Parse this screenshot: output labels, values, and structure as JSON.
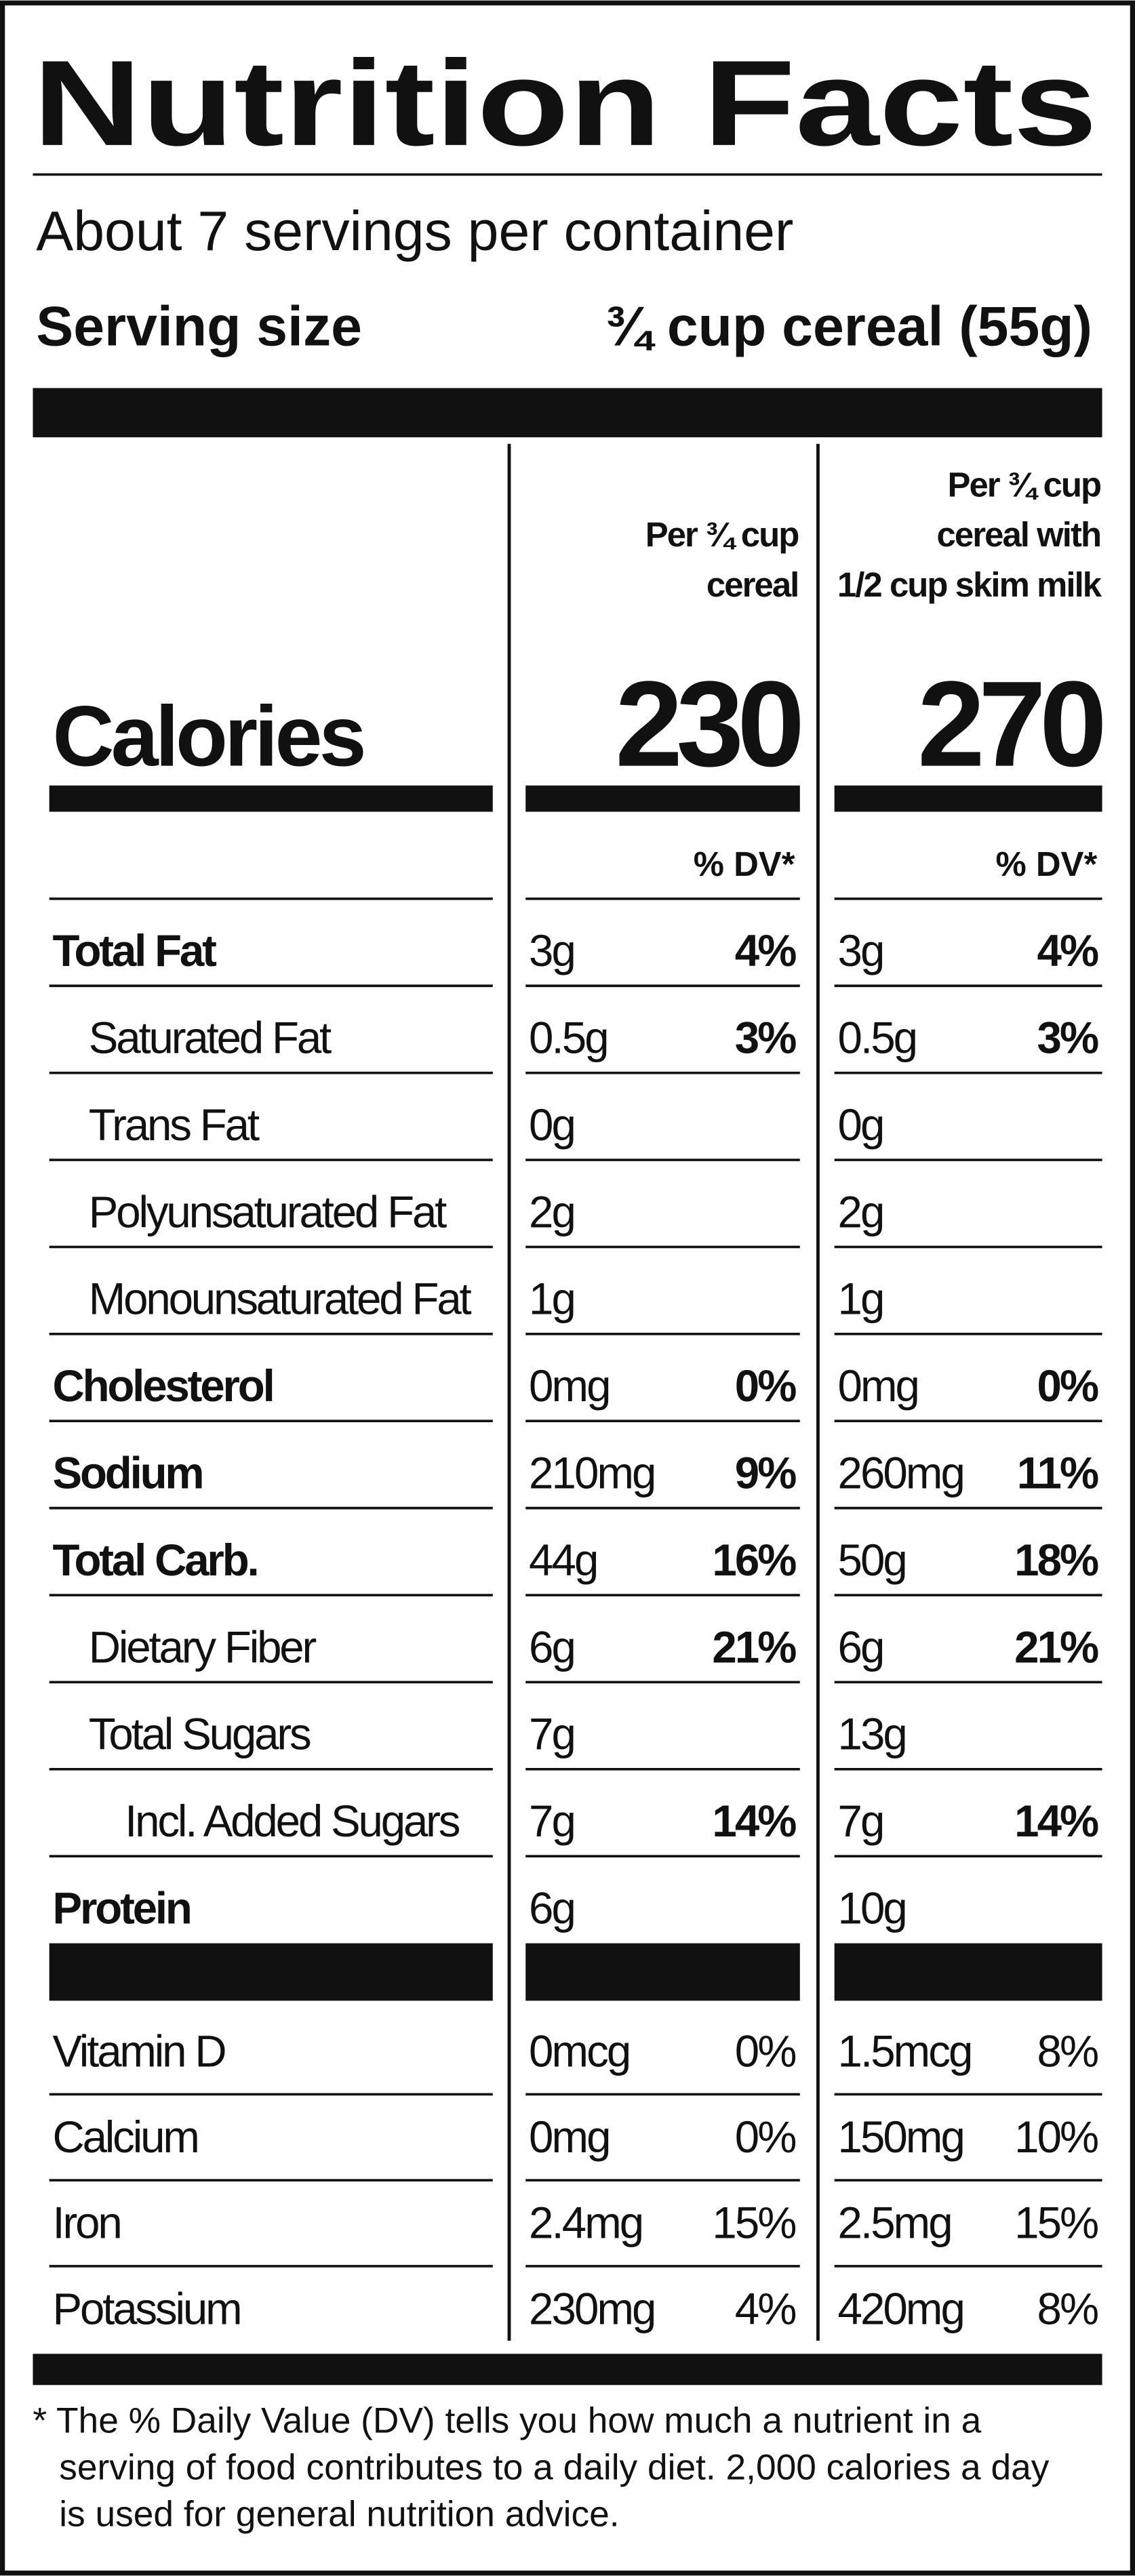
{
  "header": {
    "title": "Nutrition Facts",
    "servings": "About 7 servings per container",
    "serving_size_label": "Serving size",
    "serving_size_value": "¾ cup cereal (55g)"
  },
  "columns": [
    {
      "heading": [
        "Per ¾ cup",
        "cereal"
      ]
    },
    {
      "heading": [
        "Per ¾ cup",
        "cereal with",
        "1/2 cup skim milk"
      ]
    }
  ],
  "calories": {
    "label": "Calories",
    "values": [
      "230",
      "270"
    ]
  },
  "dv_header": "% DV*",
  "rows": [
    {
      "name": "Total Fat",
      "bold": true,
      "indent": 0,
      "cells": [
        {
          "amount": "3g",
          "dv": "4%"
        },
        {
          "amount": "3g",
          "dv": "4%"
        }
      ]
    },
    {
      "name": "Saturated Fat",
      "bold": false,
      "indent": 1,
      "cells": [
        {
          "amount": "0.5g",
          "dv": "3%"
        },
        {
          "amount": "0.5g",
          "dv": "3%"
        }
      ]
    },
    {
      "name": "Trans Fat",
      "bold": false,
      "indent": 1,
      "cells": [
        {
          "amount": "0g"
        },
        {
          "amount": "0g"
        }
      ]
    },
    {
      "name": "Polyunsaturated Fat",
      "bold": false,
      "indent": 1,
      "cells": [
        {
          "amount": "2g"
        },
        {
          "amount": "2g"
        }
      ]
    },
    {
      "name": "Monounsaturated Fat",
      "bold": false,
      "indent": 1,
      "cells": [
        {
          "amount": "1g"
        },
        {
          "amount": "1g"
        }
      ]
    },
    {
      "name": "Cholesterol",
      "bold": true,
      "indent": 0,
      "cells": [
        {
          "amount": "0mg",
          "dv": "0%"
        },
        {
          "amount": "0mg",
          "dv": "0%"
        }
      ]
    },
    {
      "name": "Sodium",
      "bold": true,
      "indent": 0,
      "cells": [
        {
          "amount": "210mg",
          "dv": "9%"
        },
        {
          "amount": "260mg",
          "dv": "11%"
        }
      ]
    },
    {
      "name": "Total Carb.",
      "bold": true,
      "indent": 0,
      "cells": [
        {
          "amount": "44g",
          "dv": "16%"
        },
        {
          "amount": "50g",
          "dv": "18%"
        }
      ]
    },
    {
      "name": "Dietary Fiber",
      "bold": false,
      "indent": 1,
      "cells": [
        {
          "amount": "6g",
          "dv": "21%"
        },
        {
          "amount": "6g",
          "dv": "21%"
        }
      ]
    },
    {
      "name": "Total Sugars",
      "bold": false,
      "indent": 1,
      "cells": [
        {
          "amount": "7g"
        },
        {
          "amount": "13g"
        }
      ]
    },
    {
      "name": "Incl. Added Sugars",
      "bold": false,
      "indent": 2,
      "cells": [
        {
          "amount": "7g",
          "dv": "14%"
        },
        {
          "amount": "7g",
          "dv": "14%"
        }
      ]
    },
    {
      "name": "Protein",
      "bold": true,
      "indent": 0,
      "cells": [
        {
          "amount": "6g"
        },
        {
          "amount": "10g"
        }
      ]
    }
  ],
  "vitamins": [
    {
      "name": "Vitamin D",
      "cells": [
        {
          "amount": "0mcg",
          "dv": "0%"
        },
        {
          "amount": "1.5mcg",
          "dv": "8%"
        }
      ]
    },
    {
      "name": "Calcium",
      "cells": [
        {
          "amount": "0mg",
          "dv": "0%"
        },
        {
          "amount": "150mg",
          "dv": "10%"
        }
      ]
    },
    {
      "name": "Iron",
      "cells": [
        {
          "amount": "2.4mg",
          "dv": "15%"
        },
        {
          "amount": "2.5mg",
          "dv": "15%"
        }
      ]
    },
    {
      "name": "Potassium",
      "cells": [
        {
          "amount": "230mg",
          "dv": "4%"
        },
        {
          "amount": "420mg",
          "dv": "8%"
        }
      ]
    }
  ],
  "footnote": [
    "* The % Daily Value (DV) tells you how much a nutrient in a",
    "serving of food contributes to a daily diet. 2,000 calories a day",
    "is used for general nutrition advice."
  ]
}
